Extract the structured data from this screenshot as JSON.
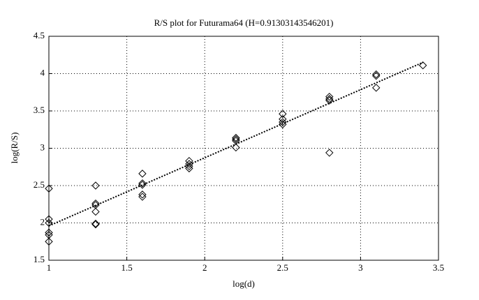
{
  "chart_data": {
    "type": "scatter",
    "title": "R/S plot for Futurama64 (H=0.91303143546201)",
    "x_label": "log(d)",
    "y_label": "log(R/S)",
    "xlim": [
      1,
      3.5
    ],
    "ylim": [
      1.5,
      4.5
    ],
    "xticks": [
      1,
      1.5,
      2,
      2.5,
      3,
      3.5
    ],
    "yticks": [
      1.5,
      2,
      2.5,
      3,
      3.5,
      4,
      4.5
    ],
    "grid": true,
    "series": [
      {
        "marker": "diamond",
        "color": "#000000",
        "x": [
          1,
          1,
          1,
          1,
          1,
          1,
          1.3,
          1.3,
          1.3,
          1.3,
          1.3,
          1.3,
          1.6,
          1.6,
          1.6,
          1.6,
          1.6,
          1.9,
          1.9,
          1.9,
          1.9,
          2.2,
          2.2,
          2.2,
          2.2,
          2.5,
          2.5,
          2.5,
          2.5,
          2.8,
          2.8,
          2.8,
          2.8,
          3.1,
          3.1,
          3.1,
          3.4
        ],
        "values": [
          2.46,
          2.05,
          2.0,
          1.87,
          1.84,
          1.75,
          2.5,
          2.26,
          2.24,
          2.15,
          1.99,
          1.98,
          2.66,
          2.53,
          2.51,
          2.38,
          2.35,
          2.83,
          2.79,
          2.76,
          2.73,
          3.14,
          3.12,
          3.1,
          3.01,
          3.46,
          3.39,
          3.35,
          3.32,
          3.69,
          3.66,
          3.64,
          2.94,
          3.99,
          3.97,
          3.81,
          4.11
        ]
      },
      {
        "marker": "none",
        "line": "dotted",
        "color": "#000000",
        "x": [
          1,
          3.4
        ],
        "values": [
          1.96,
          4.15
        ]
      }
    ]
  }
}
